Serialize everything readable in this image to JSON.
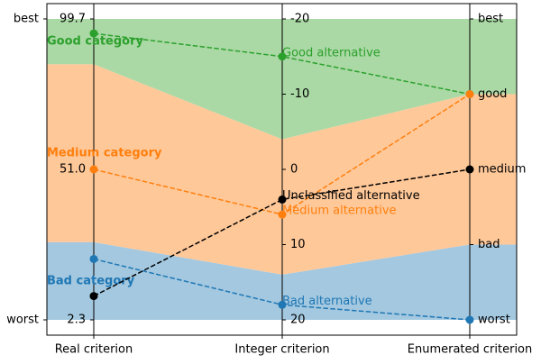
{
  "chart_data": {
    "type": "parallel",
    "scale_labels": {
      "top": "best",
      "bottom": "worst"
    },
    "criteria": [
      {
        "name": "Real criterion",
        "ylim": [
          2.3,
          99.7
        ],
        "yticks": [
          99.7,
          {
            "value": 51.0,
            "label": "51.0"
          },
          2.3
        ],
        "tick_side": "left"
      },
      {
        "name": "Integer criterion",
        "ylim": [
          20,
          -20
        ],
        "yticks": [
          -20,
          -10,
          0,
          10,
          20
        ],
        "tick_side": "right"
      },
      {
        "name": "Enumerated criterion",
        "categories": [
          "best",
          "good",
          "medium",
          "bad",
          "worst"
        ],
        "tick_side": "right"
      }
    ],
    "bands": [
      {
        "name": "Good category",
        "color": "#2ca02c",
        "fill": "#aad9a5",
        "upper": [
          99.7,
          -20,
          "best"
        ],
        "lower": [
          85,
          -4,
          "good"
        ]
      },
      {
        "name": "Medium category",
        "color": "#ff7f0e",
        "fill": "#ffc899",
        "upper": [
          85,
          -4,
          "good"
        ],
        "lower": [
          27.4,
          14,
          "bad"
        ]
      },
      {
        "name": "Bad category",
        "color": "#1f77b4",
        "fill": "#a3c8e0",
        "upper": [
          27.4,
          14,
          "bad"
        ],
        "lower": [
          2.3,
          20,
          "worst"
        ]
      }
    ],
    "series": [
      {
        "name": "Good alternative",
        "color": "#2ca02c",
        "values": [
          95,
          -15,
          "good"
        ]
      },
      {
        "name": "Medium alternative",
        "color": "#ff7f0e",
        "values": [
          51,
          6,
          "good"
        ]
      },
      {
        "name": "Bad alternative",
        "color": "#1f77b4",
        "values": [
          22,
          18,
          "worst"
        ]
      },
      {
        "name": "Unclassified alternative",
        "color": "#000000",
        "values": [
          10,
          4,
          "medium"
        ]
      }
    ]
  }
}
